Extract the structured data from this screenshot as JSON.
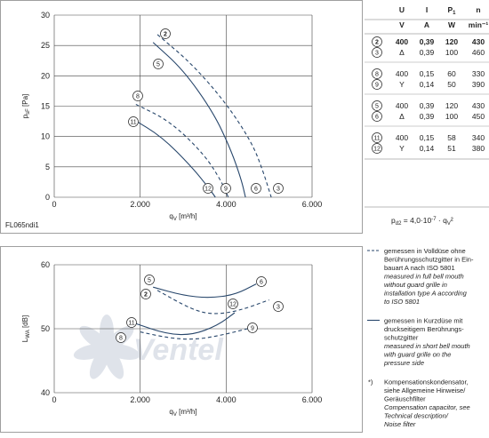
{
  "chart_data": [
    {
      "id": "pressure",
      "type": "line",
      "xlim": [
        0,
        6000
      ],
      "ylim": [
        0,
        30
      ],
      "xticks": [
        "0",
        "2.000",
        "4.000",
        "6.000"
      ],
      "yticks": [
        "0",
        "5",
        "10",
        "15",
        "20",
        "25",
        "30"
      ],
      "xlabel_sym": "q",
      "xlabel_sub": "V",
      "xlabel_unit": " [m³/h]",
      "ylabel_sym": "p",
      "ylabel_sub": "sF",
      "ylabel_unit": " [Pa]",
      "footnote": "FL065ndi1",
      "series": [
        {
          "name": "2",
          "style": "dashed",
          "marker_at": "start",
          "points": [
            [
              2400,
              26.8
            ],
            [
              3200,
              22.0
            ],
            [
              4000,
              15.5
            ],
            [
              4600,
              9.0
            ],
            [
              4850,
              4.5
            ],
            [
              5050,
              0
            ]
          ]
        },
        {
          "name": "5",
          "style": "solid",
          "marker_at": "start",
          "points": [
            [
              2300,
              25.5
            ],
            [
              3000,
              21.0
            ],
            [
              3700,
              14.0
            ],
            [
              4100,
              8.0
            ],
            [
              4350,
              3.0
            ],
            [
              4450,
              0
            ]
          ]
        },
        {
          "name": "8",
          "style": "dashed",
          "marker_at": "start",
          "points": [
            [
              1900,
              15.3
            ],
            [
              2700,
              12.5
            ],
            [
              3500,
              7.0
            ],
            [
              3900,
              2.5
            ],
            [
              4050,
              0
            ]
          ]
        },
        {
          "name": "11",
          "style": "solid",
          "marker_at": "start",
          "points": [
            [
              1800,
              13.0
            ],
            [
              2500,
              10.0
            ],
            [
              3200,
              5.0
            ],
            [
              3600,
              1.5
            ],
            [
              3750,
              0
            ]
          ]
        },
        {
          "name": "12",
          "style": "none",
          "marker_at": "end",
          "points": [
            [
              3600,
              0.5
            ]
          ]
        },
        {
          "name": "9",
          "style": "none",
          "marker_at": "end",
          "points": [
            [
              3950,
              0.5
            ]
          ]
        },
        {
          "name": "6",
          "style": "none",
          "marker_at": "end",
          "points": [
            [
              4600,
              0.5
            ]
          ]
        },
        {
          "name": "3",
          "style": "none",
          "marker_at": "end",
          "points": [
            [
              5100,
              0.5
            ]
          ]
        }
      ]
    },
    {
      "id": "sound",
      "type": "line",
      "xlim": [
        0,
        6000
      ],
      "ylim": [
        40,
        60
      ],
      "xticks": [
        "0",
        "2.000",
        "4.000",
        "6.000"
      ],
      "yticks": [
        "40",
        "50",
        "60"
      ],
      "xlabel_sym": "q",
      "xlabel_sub": "V",
      "xlabel_unit": " [m³/h]",
      "ylabel_sym": "L",
      "ylabel_sub": "WA",
      "ylabel_unit": " [dB]",
      "series": [
        {
          "name": "5",
          "style": "solid",
          "points": [
            [
              2300,
              56.5
            ],
            [
              3000,
              55.2
            ],
            [
              3600,
              54.8
            ],
            [
              4200,
              55.3
            ],
            [
              4700,
              57.0
            ]
          ]
        },
        {
          "name": "2",
          "style": "dashed",
          "points": [
            [
              2400,
              56.0
            ],
            [
              3200,
              53.0
            ],
            [
              3700,
              52.2
            ],
            [
              4300,
              52.8
            ],
            [
              5000,
              54.5
            ]
          ]
        },
        {
          "name": "6",
          "style": "none",
          "points": [
            [
              4900,
              57.2
            ]
          ]
        },
        {
          "name": "12",
          "style": "none",
          "points": [
            [
              4100,
              53.0
            ]
          ]
        },
        {
          "name": "3",
          "style": "none",
          "points": [
            [
              5200,
              53.8
            ]
          ]
        },
        {
          "name": "11",
          "style": "solid",
          "points": [
            [
              1900,
              50.8
            ],
            [
              2600,
              49.2
            ],
            [
              3200,
              49.0
            ],
            [
              3800,
              50.5
            ],
            [
              4200,
              52.5
            ]
          ]
        },
        {
          "name": "8",
          "style": "dashed",
          "points": [
            [
              2000,
              49.5
            ],
            [
              2700,
              48.5
            ],
            [
              3300,
              48.3
            ],
            [
              3900,
              49.0
            ],
            [
              4500,
              50.0
            ]
          ]
        },
        {
          "name": "9",
          "style": "none",
          "points": [
            [
              4550,
              50.2
            ]
          ]
        }
      ]
    }
  ],
  "watermark": "Ventel",
  "table": {
    "head1": [
      "U",
      "I",
      "P",
      "n"
    ],
    "head1_p_sub": "1",
    "head2": [
      "V",
      "A",
      "W",
      "min⁻¹"
    ],
    "groups": [
      [
        {
          "id": "2",
          "mode": "",
          "u": "400",
          "i": "0,39",
          "p": "120",
          "n": "430",
          "bold": true
        },
        {
          "id": "3",
          "mode": "Δ",
          "u": "",
          "i": "0,39",
          "p": "100",
          "n": "460",
          "bold": false
        }
      ],
      [
        {
          "id": "8",
          "mode": "",
          "u": "400",
          "i": "0,15",
          "p": "60",
          "n": "330",
          "bold": false
        },
        {
          "id": "9",
          "mode": "Y",
          "u": "",
          "i": "0,14",
          "p": "50",
          "n": "390",
          "bold": false
        }
      ],
      [
        {
          "id": "5",
          "mode": "",
          "u": "400",
          "i": "0,39",
          "p": "120",
          "n": "430",
          "bold": false
        },
        {
          "id": "6",
          "mode": "Δ",
          "u": "",
          "i": "0,39",
          "p": "100",
          "n": "450",
          "bold": false
        }
      ],
      [
        {
          "id": "11",
          "mode": "",
          "u": "400",
          "i": "0,15",
          "p": "58",
          "n": "340",
          "bold": false
        },
        {
          "id": "12",
          "mode": "Y",
          "u": "",
          "i": "0,14",
          "p": "51",
          "n": "380",
          "bold": false
        }
      ]
    ]
  },
  "formula": {
    "a": "p",
    "a_sub": "d2",
    "b": " = 4,0·10",
    "exp": "-7",
    "c": " · q",
    "c_sub": "V",
    "d": "²"
  },
  "legend": [
    {
      "style": "dashed",
      "de": [
        "gemessen in Volldüse ohne",
        "Berührungsschutzgitter in Ein-",
        "bauart A nach ISO 5801"
      ],
      "en": [
        "measured in full bell mouth",
        "without guard grille in",
        "installation type A according",
        "to ISO 5801"
      ]
    },
    {
      "style": "solid",
      "de": [
        "gemessen in Kurzdüse mit",
        "druckseitigem Berührungs-",
        "schutzgitter"
      ],
      "en": [
        "measured in short bell mouth",
        "with guard grille on the",
        "pressure side"
      ]
    },
    {
      "style": "star",
      "marker": "*)",
      "de": [
        "Kompensationskondensator,",
        "siehe Allgemeine Hinweise/",
        "Geräuschfilter"
      ],
      "en": [
        "Compensation capacitor, see",
        "Technical description/",
        "Noise filter"
      ]
    }
  ],
  "colors": {
    "curve": "#27466b",
    "grid": "#444444",
    "watermark": "#dfe3ea"
  }
}
